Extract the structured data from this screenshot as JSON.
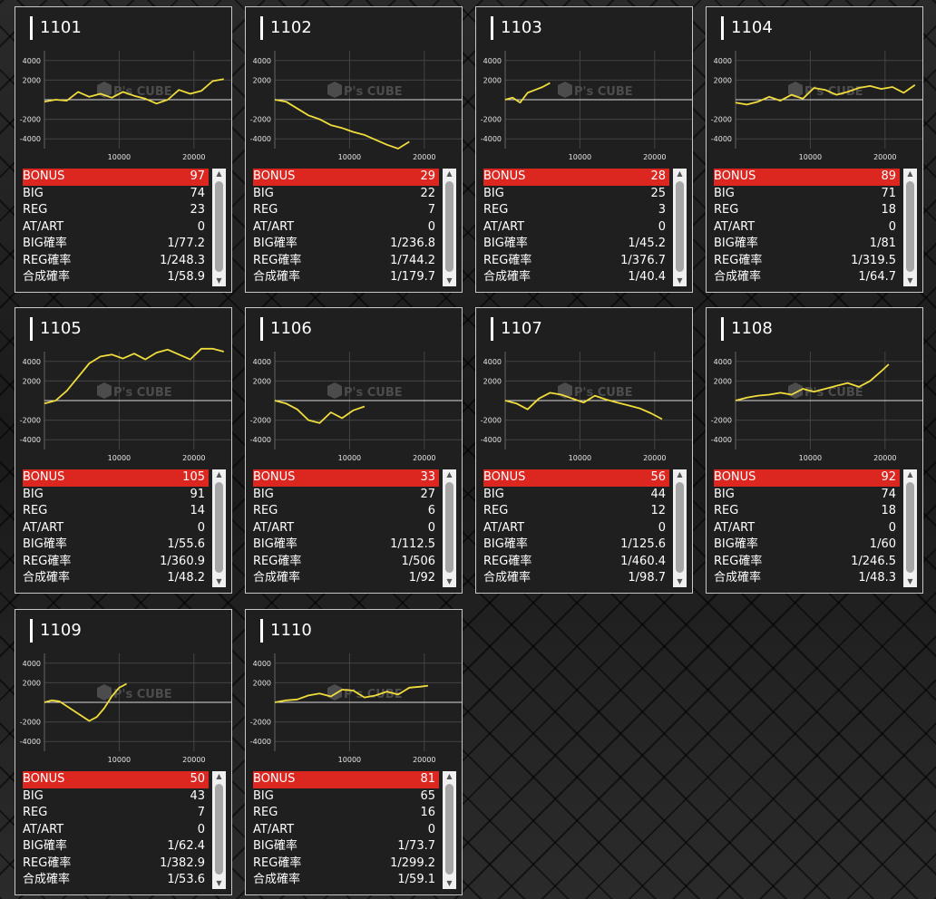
{
  "colors": {
    "bonus_bar": "#dc2620",
    "line": "#f0dc3c",
    "card_bg": "#1f1f1f",
    "card_border": "#c8c8c8"
  },
  "labels": {
    "bonus": "BONUS",
    "big": "BIG",
    "reg": "REG",
    "atart": "AT/ART",
    "big_rate": "BIG確率",
    "reg_rate": "REG確率",
    "total_rate": "合成確率"
  },
  "watermark": {
    "logo": "P's CUBE"
  },
  "icons": {
    "scroll_up": "triangle-up-icon",
    "scroll_down": "triangle-down-icon"
  },
  "machines": [
    {
      "id": "1101",
      "bonus": "97",
      "big": "74",
      "reg": "23",
      "atart": "0",
      "big_rate": "1/77.2",
      "reg_rate": "1/248.3",
      "total_rate": "1/58.9"
    },
    {
      "id": "1102",
      "bonus": "29",
      "big": "22",
      "reg": "7",
      "atart": "0",
      "big_rate": "1/236.8",
      "reg_rate": "1/744.2",
      "total_rate": "1/179.7"
    },
    {
      "id": "1103",
      "bonus": "28",
      "big": "25",
      "reg": "3",
      "atart": "0",
      "big_rate": "1/45.2",
      "reg_rate": "1/376.7",
      "total_rate": "1/40.4"
    },
    {
      "id": "1104",
      "bonus": "89",
      "big": "71",
      "reg": "18",
      "atart": "0",
      "big_rate": "1/81",
      "reg_rate": "1/319.5",
      "total_rate": "1/64.7"
    },
    {
      "id": "1105",
      "bonus": "105",
      "big": "91",
      "reg": "14",
      "atart": "0",
      "big_rate": "1/55.6",
      "reg_rate": "1/360.9",
      "total_rate": "1/48.2"
    },
    {
      "id": "1106",
      "bonus": "33",
      "big": "27",
      "reg": "6",
      "atart": "0",
      "big_rate": "1/112.5",
      "reg_rate": "1/506",
      "total_rate": "1/92"
    },
    {
      "id": "1107",
      "bonus": "56",
      "big": "44",
      "reg": "12",
      "atart": "0",
      "big_rate": "1/125.6",
      "reg_rate": "1/460.4",
      "total_rate": "1/98.7"
    },
    {
      "id": "1108",
      "bonus": "92",
      "big": "74",
      "reg": "18",
      "atart": "0",
      "big_rate": "1/60",
      "reg_rate": "1/246.5",
      "total_rate": "1/48.3"
    },
    {
      "id": "1109",
      "bonus": "50",
      "big": "43",
      "reg": "7",
      "atart": "0",
      "big_rate": "1/62.4",
      "reg_rate": "1/382.9",
      "total_rate": "1/53.6"
    },
    {
      "id": "1110",
      "bonus": "81",
      "big": "65",
      "reg": "16",
      "atart": "0",
      "big_rate": "1/73.7",
      "reg_rate": "1/299.2",
      "total_rate": "1/59.1"
    }
  ],
  "chart_data": [
    {
      "type": "line",
      "machine": "1101",
      "xlim": [
        0,
        25000
      ],
      "ylim": [
        -5000,
        5000
      ],
      "x_ticks": [
        10000,
        20000
      ],
      "y_ticks": [
        4000,
        2000,
        -2000,
        -4000
      ],
      "x": [
        0,
        1500,
        3000,
        4500,
        6000,
        7500,
        9000,
        10500,
        12000,
        13500,
        15000,
        16500,
        18000,
        19500,
        21000,
        22500,
        24000
      ],
      "y": [
        -200,
        0,
        -100,
        800,
        300,
        600,
        200,
        800,
        400,
        100,
        -400,
        0,
        1000,
        600,
        900,
        1900,
        2100
      ]
    },
    {
      "type": "line",
      "machine": "1102",
      "xlim": [
        0,
        25000
      ],
      "ylim": [
        -5000,
        5000
      ],
      "x_ticks": [
        10000,
        20000
      ],
      "y_ticks": [
        4000,
        2000,
        -2000,
        -4000
      ],
      "x": [
        0,
        1500,
        3000,
        4500,
        6000,
        7500,
        9000,
        10500,
        12000,
        13500,
        15000,
        16500,
        18000
      ],
      "y": [
        0,
        -200,
        -900,
        -1600,
        -2000,
        -2600,
        -2900,
        -3300,
        -3600,
        -4100,
        -4600,
        -5000,
        -4300
      ]
    },
    {
      "type": "line",
      "machine": "1103",
      "xlim": [
        0,
        25000
      ],
      "ylim": [
        -5000,
        5000
      ],
      "x_ticks": [
        10000,
        20000
      ],
      "y_ticks": [
        4000,
        2000,
        -2000,
        -4000
      ],
      "x": [
        0,
        1000,
        2000,
        3000,
        4000,
        5000,
        6000
      ],
      "y": [
        0,
        200,
        -300,
        700,
        1000,
        1300,
        1700
      ]
    },
    {
      "type": "line",
      "machine": "1104",
      "xlim": [
        0,
        25000
      ],
      "ylim": [
        -5000,
        5000
      ],
      "x_ticks": [
        10000,
        20000
      ],
      "y_ticks": [
        4000,
        2000,
        -2000,
        -4000
      ],
      "x": [
        0,
        1500,
        3000,
        4500,
        6000,
        7500,
        9000,
        10500,
        12000,
        13500,
        15000,
        16500,
        18000,
        19500,
        21000,
        22500,
        24000
      ],
      "y": [
        -300,
        -500,
        -200,
        300,
        -100,
        500,
        100,
        1200,
        1000,
        500,
        800,
        1200,
        1400,
        1100,
        1300,
        700,
        1500
      ]
    },
    {
      "type": "line",
      "machine": "1105",
      "xlim": [
        0,
        25000
      ],
      "ylim": [
        -5000,
        5000
      ],
      "x_ticks": [
        10000,
        20000
      ],
      "y_ticks": [
        4000,
        2000,
        -2000,
        -4000
      ],
      "x": [
        0,
        1500,
        3000,
        4500,
        6000,
        7500,
        9000,
        10500,
        12000,
        13500,
        15000,
        16500,
        18000,
        19500,
        21000,
        22500,
        24000
      ],
      "y": [
        -300,
        0,
        1000,
        2400,
        3800,
        4500,
        4700,
        4300,
        4800,
        4200,
        4900,
        5200,
        4700,
        4200,
        5300,
        5300,
        5000
      ]
    },
    {
      "type": "line",
      "machine": "1106",
      "xlim": [
        0,
        25000
      ],
      "ylim": [
        -5000,
        5000
      ],
      "x_ticks": [
        10000,
        20000
      ],
      "y_ticks": [
        4000,
        2000,
        -2000,
        -4000
      ],
      "x": [
        0,
        1500,
        3000,
        4500,
        6000,
        7500,
        9000,
        10500,
        12000
      ],
      "y": [
        0,
        -300,
        -900,
        -2000,
        -2300,
        -1200,
        -1800,
        -1000,
        -600
      ]
    },
    {
      "type": "line",
      "machine": "1107",
      "xlim": [
        0,
        25000
      ],
      "ylim": [
        -5000,
        5000
      ],
      "x_ticks": [
        10000,
        20000
      ],
      "y_ticks": [
        4000,
        2000,
        -2000,
        -4000
      ],
      "x": [
        0,
        1500,
        3000,
        4500,
        6000,
        7500,
        9000,
        10500,
        12000,
        13500,
        15000,
        16500,
        18000,
        19500,
        21000
      ],
      "y": [
        0,
        -300,
        -900,
        200,
        800,
        600,
        200,
        -200,
        500,
        100,
        -200,
        -500,
        -800,
        -1300,
        -1900
      ]
    },
    {
      "type": "line",
      "machine": "1108",
      "xlim": [
        0,
        25000
      ],
      "ylim": [
        -5000,
        5000
      ],
      "x_ticks": [
        10000,
        20000
      ],
      "y_ticks": [
        4000,
        2000,
        -2000,
        -4000
      ],
      "x": [
        0,
        1500,
        3000,
        4500,
        6000,
        7500,
        9000,
        10500,
        12000,
        13500,
        15000,
        16500,
        18000,
        19500,
        20500
      ],
      "y": [
        0,
        300,
        500,
        600,
        800,
        600,
        1200,
        900,
        1200,
        1500,
        1800,
        1400,
        2000,
        3000,
        3700
      ]
    },
    {
      "type": "line",
      "machine": "1109",
      "xlim": [
        0,
        25000
      ],
      "ylim": [
        -5000,
        5000
      ],
      "x_ticks": [
        10000,
        20000
      ],
      "y_ticks": [
        4000,
        2000,
        -2000,
        -4000
      ],
      "x": [
        0,
        1000,
        2000,
        3000,
        4000,
        5000,
        6000,
        7000,
        8000,
        9000,
        10000,
        11000
      ],
      "y": [
        0,
        200,
        100,
        -400,
        -900,
        -1400,
        -1900,
        -1500,
        -600,
        600,
        1500,
        1900
      ]
    },
    {
      "type": "line",
      "machine": "1110",
      "xlim": [
        0,
        25000
      ],
      "ylim": [
        -5000,
        5000
      ],
      "x_ticks": [
        10000,
        20000
      ],
      "y_ticks": [
        4000,
        2000,
        -2000,
        -4000
      ],
      "x": [
        0,
        1500,
        3000,
        4500,
        6000,
        7500,
        9000,
        10500,
        12000,
        13500,
        15000,
        16500,
        18000,
        19500,
        20500
      ],
      "y": [
        0,
        200,
        300,
        700,
        900,
        600,
        1300,
        1200,
        500,
        700,
        1100,
        800,
        1500,
        1600,
        1700
      ]
    }
  ]
}
